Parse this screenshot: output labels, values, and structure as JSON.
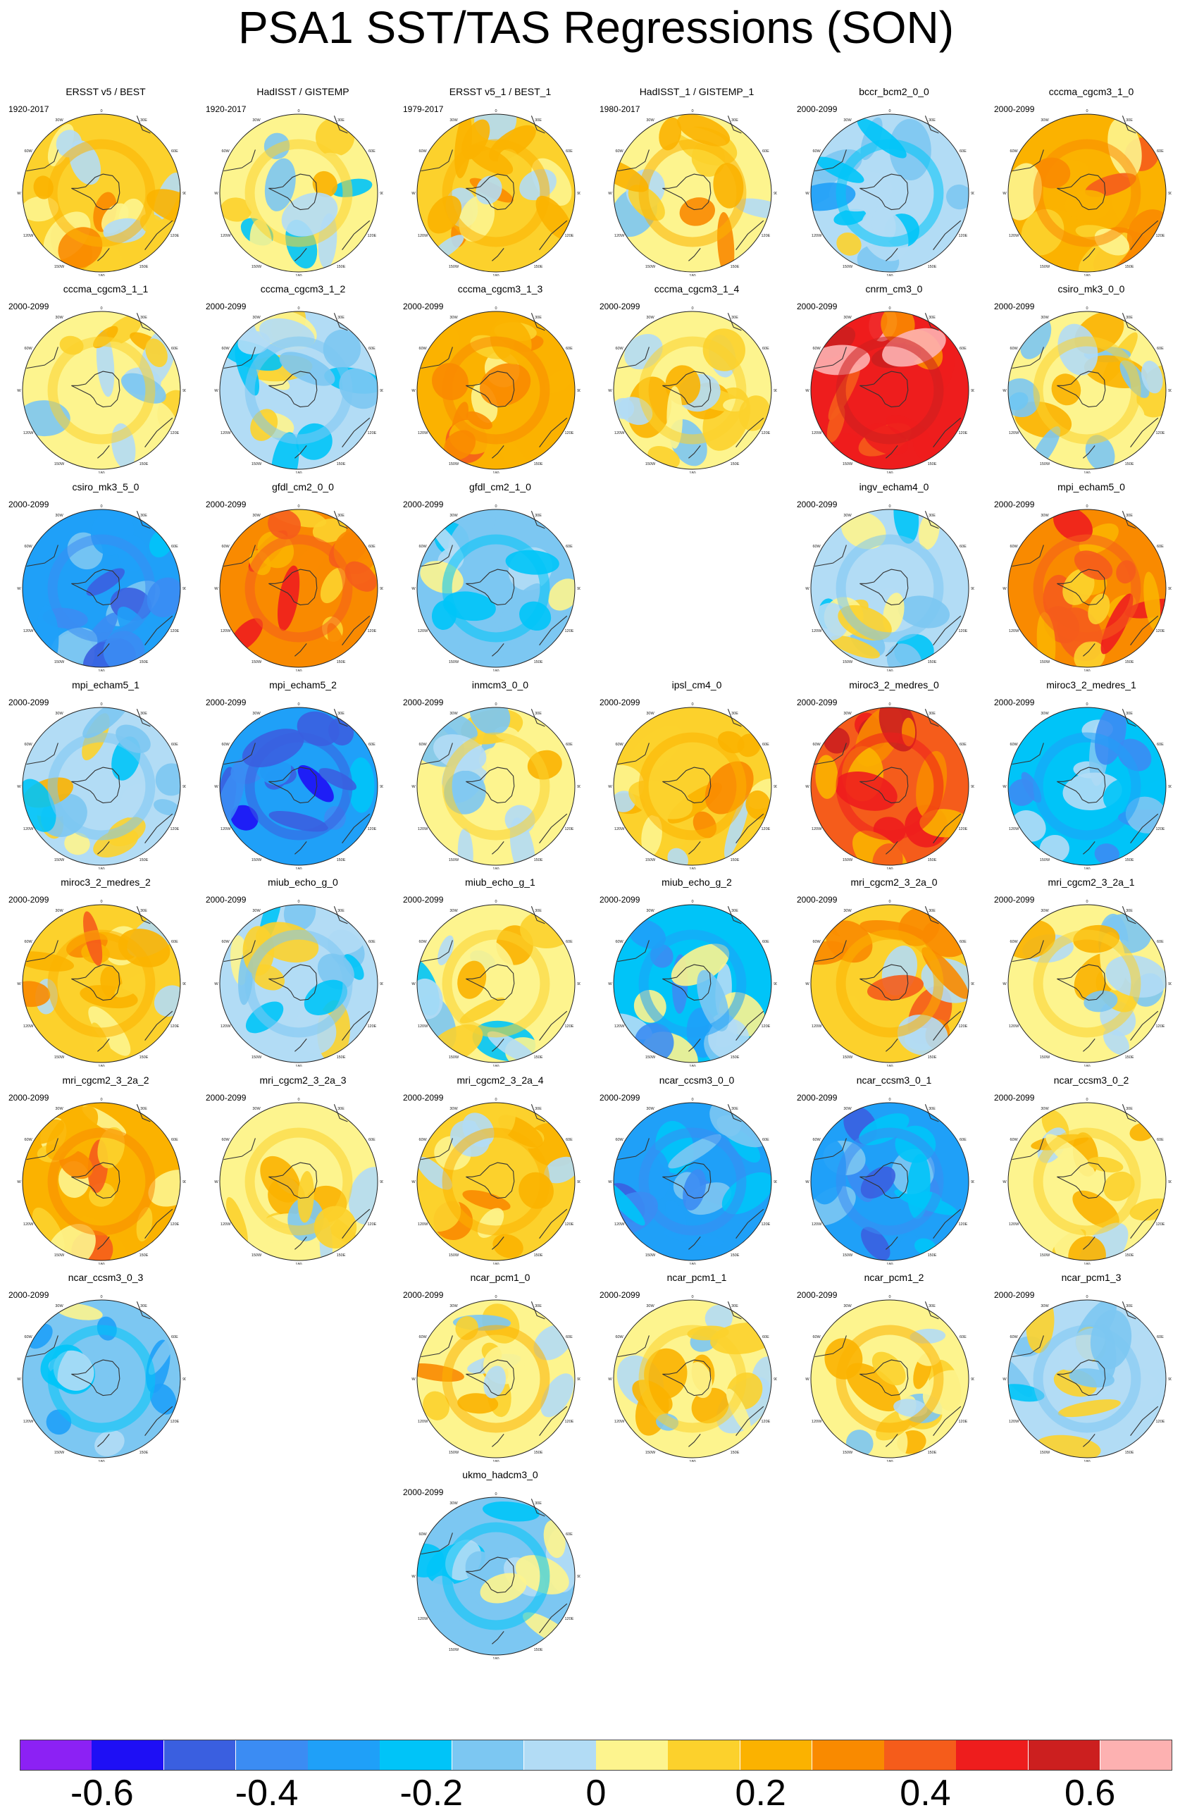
{
  "title": "PSA1 SST/TAS Regressions (SON)",
  "colorbar": {
    "colors": [
      "#8c21f4",
      "#1e0ff5",
      "#3a5fe0",
      "#3b8cf3",
      "#1fa0f8",
      "#00c4f8",
      "#7cc7f2",
      "#b2dcf5",
      "#fdf48e",
      "#fcd12c",
      "#fbb200",
      "#f98a00",
      "#f55c1b",
      "#ee1d1d",
      "#cc1f1f",
      "#fdb1b1"
    ],
    "tick_labels": [
      {
        "value": -0.6,
        "text": "-0.6"
      },
      {
        "value": -0.4,
        "text": "-0.4"
      },
      {
        "value": -0.2,
        "text": "-0.2"
      },
      {
        "value": 0,
        "text": "0"
      },
      {
        "value": 0.2,
        "text": "0.2"
      },
      {
        "value": 0.4,
        "text": "0.4"
      },
      {
        "value": 0.6,
        "text": "0.6"
      }
    ]
  },
  "map_labels": {
    "lon_0": "0",
    "lon_30w": "30W",
    "lon_30e": "30E",
    "lon_60w": "60W",
    "lon_60e": "60E",
    "lon_90w": "90W",
    "lon_90e": "90E",
    "lon_120w": "120W",
    "lon_120e": "120E",
    "lon_150w": "150W",
    "lon_150e": "150E",
    "lon_180": "180"
  },
  "chart_data": {
    "type": "heatmap",
    "title": "PSA1 SST/TAS Regressions (SON)",
    "projection": "south polar stereographic",
    "value_range": [
      -0.7,
      0.7
    ],
    "panels": [
      {
        "row": 0,
        "col": 0,
        "title": "ERSST v5 / BEST",
        "period": "1920-2017",
        "mean_anomaly": 0.12
      },
      {
        "row": 0,
        "col": 1,
        "title": "HadISST / GISTEMP",
        "period": "1920-2017",
        "mean_anomaly": 0.0
      },
      {
        "row": 0,
        "col": 2,
        "title": "ERSST v5_1 / BEST_1",
        "period": "1979-2017",
        "mean_anomaly": 0.12
      },
      {
        "row": 0,
        "col": 3,
        "title": "HadISST_1 / GISTEMP_1",
        "period": "1980-2017",
        "mean_anomaly": 0.08
      },
      {
        "row": 0,
        "col": 4,
        "title": "bccr_bcm2_0_0",
        "period": "2000-2099",
        "mean_anomaly": -0.08
      },
      {
        "row": 0,
        "col": 5,
        "title": "cccma_cgcm3_1_0",
        "period": "2000-2099",
        "mean_anomaly": 0.22
      },
      {
        "row": 1,
        "col": 0,
        "title": "cccma_cgcm3_1_1",
        "period": "2000-2099",
        "mean_anomaly": 0.05
      },
      {
        "row": 1,
        "col": 1,
        "title": "cccma_cgcm3_1_2",
        "period": "2000-2099",
        "mean_anomaly": -0.05
      },
      {
        "row": 1,
        "col": 2,
        "title": "cccma_cgcm3_1_3",
        "period": "2000-2099",
        "mean_anomaly": 0.25
      },
      {
        "row": 1,
        "col": 3,
        "title": "cccma_cgcm3_1_4",
        "period": "2000-2099",
        "mean_anomaly": 0.02
      },
      {
        "row": 1,
        "col": 4,
        "title": "cnrm_cm3_0",
        "period": "2000-2099",
        "mean_anomaly": 0.5
      },
      {
        "row": 1,
        "col": 5,
        "title": "csiro_mk3_0_0",
        "period": "2000-2099",
        "mean_anomaly": 0.0
      },
      {
        "row": 2,
        "col": 0,
        "title": "csiro_mk3_5_0",
        "period": "2000-2099",
        "mean_anomaly": -0.3
      },
      {
        "row": 2,
        "col": 1,
        "title": "gfdl_cm2_0_0",
        "period": "2000-2099",
        "mean_anomaly": 0.3
      },
      {
        "row": 2,
        "col": 2,
        "title": "gfdl_cm2_1_0",
        "period": "2000-2099",
        "mean_anomaly": -0.1
      },
      {
        "row": 2,
        "col": 4,
        "title": "ingv_echam4_0",
        "period": "2000-2099",
        "mean_anomaly": -0.05
      },
      {
        "row": 2,
        "col": 5,
        "title": "mpi_echam5_0",
        "period": "2000-2099",
        "mean_anomaly": 0.3
      },
      {
        "row": 3,
        "col": 0,
        "title": "mpi_echam5_1",
        "period": "2000-2099",
        "mean_anomaly": -0.02
      },
      {
        "row": 3,
        "col": 1,
        "title": "mpi_echam5_2",
        "period": "2000-2099",
        "mean_anomaly": -0.35
      },
      {
        "row": 3,
        "col": 2,
        "title": "inmcm3_0_0",
        "period": "2000-2099",
        "mean_anomaly": 0.0
      },
      {
        "row": 3,
        "col": 3,
        "title": "ipsl_cm4_0",
        "period": "2000-2099",
        "mean_anomaly": 0.15
      },
      {
        "row": 3,
        "col": 4,
        "title": "miroc3_2_medres_0",
        "period": "2000-2099",
        "mean_anomaly": 0.4
      },
      {
        "row": 3,
        "col": 5,
        "title": "miroc3_2_medres_1",
        "period": "2000-2099",
        "mean_anomaly": -0.22
      },
      {
        "row": 4,
        "col": 0,
        "title": "miroc3_2_medres_2",
        "period": "2000-2099",
        "mean_anomaly": 0.15
      },
      {
        "row": 4,
        "col": 1,
        "title": "miub_echo_g_0",
        "period": "2000-2099",
        "mean_anomaly": -0.05
      },
      {
        "row": 4,
        "col": 2,
        "title": "miub_echo_g_1",
        "period": "2000-2099",
        "mean_anomaly": 0.0
      },
      {
        "row": 4,
        "col": 3,
        "title": "miub_echo_g_2",
        "period": "2000-2099",
        "mean_anomaly": -0.2
      },
      {
        "row": 4,
        "col": 4,
        "title": "mri_cgcm2_3_2a_0",
        "period": "2000-2099",
        "mean_anomaly": 0.15
      },
      {
        "row": 4,
        "col": 5,
        "title": "mri_cgcm2_3_2a_1",
        "period": "2000-2099",
        "mean_anomaly": 0.05
      },
      {
        "row": 5,
        "col": 0,
        "title": "mri_cgcm2_3_2a_2",
        "period": "2000-2099",
        "mean_anomaly": 0.2
      },
      {
        "row": 5,
        "col": 1,
        "title": "mri_cgcm2_3_2a_3",
        "period": "2000-2099",
        "mean_anomaly": 0.05
      },
      {
        "row": 5,
        "col": 2,
        "title": "mri_cgcm2_3_2a_4",
        "period": "2000-2099",
        "mean_anomaly": 0.15
      },
      {
        "row": 5,
        "col": 3,
        "title": "ncar_ccsm3_0_0",
        "period": "2000-2099",
        "mean_anomaly": -0.3
      },
      {
        "row": 5,
        "col": 4,
        "title": "ncar_ccsm3_0_1",
        "period": "2000-2099",
        "mean_anomaly": -0.3
      },
      {
        "row": 5,
        "col": 5,
        "title": "ncar_ccsm3_0_2",
        "period": "2000-2099",
        "mean_anomaly": 0.05
      },
      {
        "row": 6,
        "col": 0,
        "title": "ncar_ccsm3_0_3",
        "period": "2000-2099",
        "mean_anomaly": -0.15
      },
      {
        "row": 6,
        "col": 2,
        "title": "ncar_pcm1_0",
        "period": "2000-2099",
        "mean_anomaly": 0.08
      },
      {
        "row": 6,
        "col": 3,
        "title": "ncar_pcm1_1",
        "period": "2000-2099",
        "mean_anomaly": 0.05
      },
      {
        "row": 6,
        "col": 4,
        "title": "ncar_pcm1_2",
        "period": "2000-2099",
        "mean_anomaly": 0.08
      },
      {
        "row": 6,
        "col": 5,
        "title": "ncar_pcm1_3",
        "period": "2000-2099",
        "mean_anomaly": -0.02
      },
      {
        "row": 7,
        "col": 2,
        "title": "ukmo_hadcm3_0",
        "period": "2000-2099",
        "mean_anomaly": -0.15
      }
    ]
  }
}
